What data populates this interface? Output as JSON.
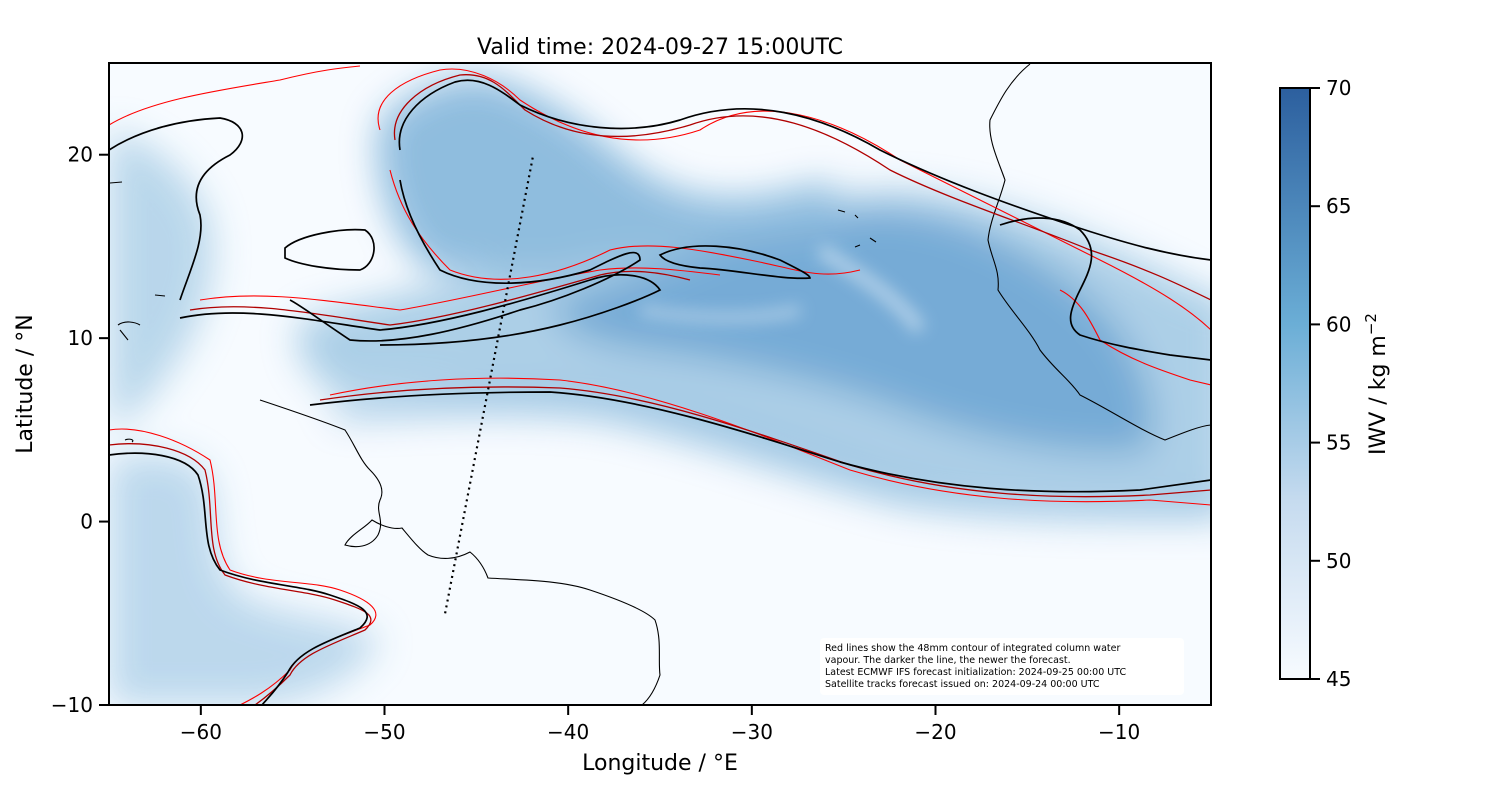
{
  "chart_data": {
    "type": "heatmap",
    "title": "Valid time: 2024-09-27 15:00UTC",
    "xlabel": "Longitude / °E",
    "ylabel": "Latitude / °N",
    "xlim": [
      -65,
      -5
    ],
    "ylim": [
      -10,
      25
    ],
    "x_ticks": [
      -60,
      -50,
      -40,
      -30,
      -20,
      -10
    ],
    "x_tick_labels": [
      "−60",
      "−50",
      "−40",
      "−30",
      "−20",
      "−10"
    ],
    "y_ticks": [
      -10,
      0,
      10,
      20
    ],
    "y_tick_labels": [
      "−10",
      "0",
      "10",
      "20"
    ],
    "colorbar": {
      "label_main": "IWV / kg m",
      "label_exp": "−2",
      "range": [
        45,
        70
      ],
      "ticks": [
        45,
        50,
        55,
        60,
        65,
        70
      ],
      "tick_labels": [
        "45",
        "50",
        "55",
        "60",
        "65",
        "70"
      ],
      "colors": [
        "#f7fbff",
        "#c6dbef",
        "#6baed6",
        "#2171b5"
      ],
      "scale": "linear"
    },
    "satellite_track": [
      [
        -46.7,
        -5
      ],
      [
        -41.9,
        20
      ]
    ],
    "contour_level_mm": 48,
    "contour_colors": [
      "#ff0000",
      "#cc0000",
      "#8b0000",
      "#000000"
    ],
    "annotation_lines": [
      "Red lines show the 48mm contour of integrated column water",
      "vapour. The darker the line, the newer the forecast.",
      "Latest ECMWF IFS forecast initialization: 2024-09-25 00:00 UTC",
      "Satellite tracks forecast issued on: 2024-09-24 00:00 UTC"
    ],
    "grid": false
  }
}
